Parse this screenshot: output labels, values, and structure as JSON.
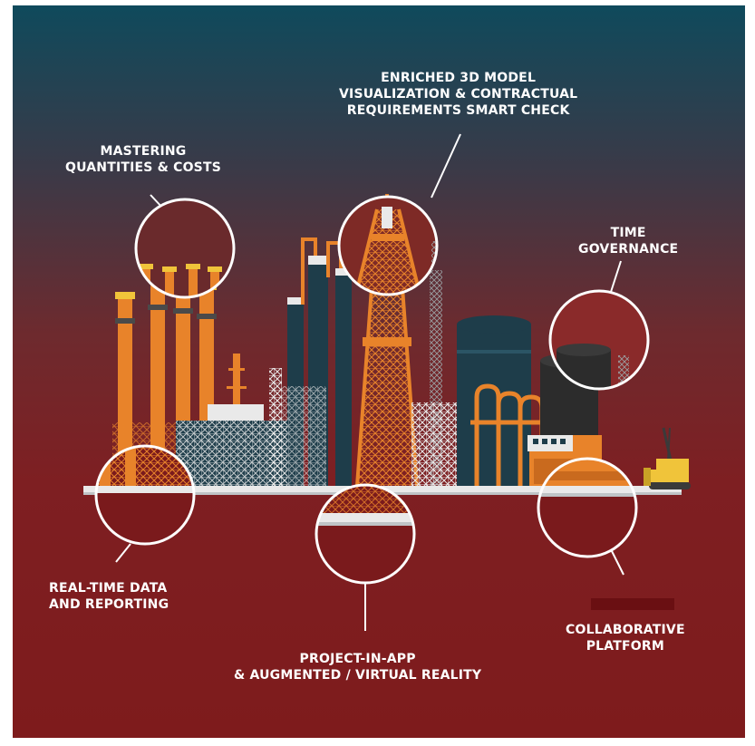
{
  "labels": {
    "mastering": [
      "MASTERING",
      "QUANTITIES & COSTS"
    ],
    "enriched": [
      "ENRICHED 3D MODEL",
      "VISUALIZATION & CONTRACTUAL",
      "REQUIREMENTS SMART CHECK"
    ],
    "time": [
      "TIME",
      "GOVERNANCE"
    ],
    "realtime": [
      "REAL-TIME DATA",
      "AND REPORTING"
    ],
    "project": [
      "PROJECT-IN-APP",
      "& AUGMENTED / VIRTUAL REALITY"
    ],
    "collab": [
      "COLLABORATIVE",
      "PLATFORM"
    ]
  },
  "colors": {
    "top": "#0f4a5c",
    "mid": "#6e2a2e",
    "bottom": "#7e1b1c",
    "orange": "#e8832a",
    "dark_teal": "#1e3d4a",
    "steel": "#bfc4c6",
    "white": "#ffffff"
  }
}
